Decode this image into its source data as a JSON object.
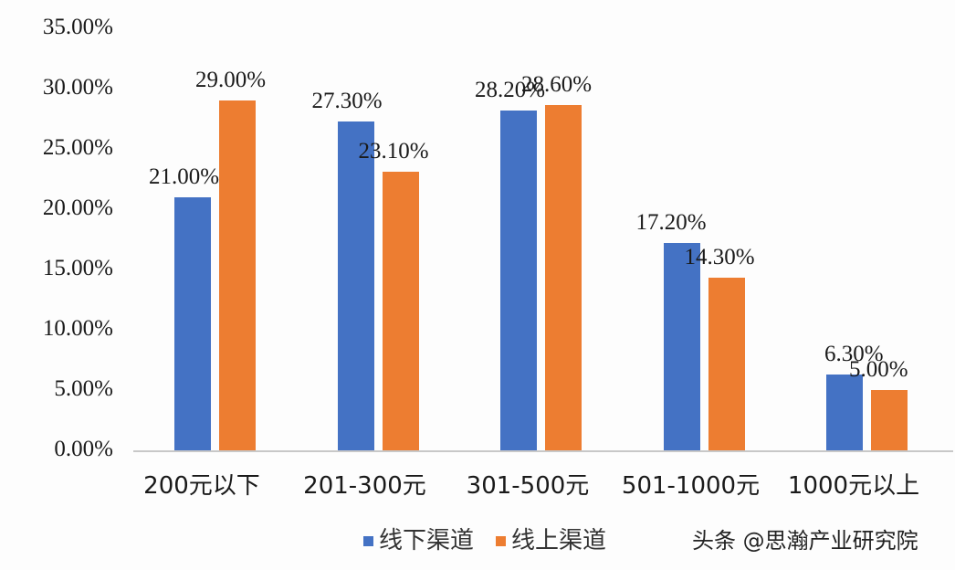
{
  "chart_data": {
    "type": "bar",
    "title": "",
    "xlabel": "",
    "ylabel": "",
    "ylim": [
      0,
      35
    ],
    "yticks": [
      "0.00%",
      "5.00%",
      "10.00%",
      "15.00%",
      "20.00%",
      "25.00%",
      "30.00%",
      "35.00%"
    ],
    "grid": false,
    "legend_position": "bottom",
    "categories": [
      "200元以下",
      "201-300元",
      "301-500元",
      "501-1000元",
      "1000元以上"
    ],
    "series": [
      {
        "name": "线下渠道",
        "color": "#4472c4",
        "values": [
          21.0,
          27.3,
          28.2,
          17.2,
          6.3
        ],
        "labels": [
          "21.00%",
          "27.30%",
          "28.20%",
          "17.20%",
          "6.30%"
        ]
      },
      {
        "name": "线上渠道",
        "color": "#ed7d31",
        "values": [
          29.0,
          23.1,
          28.6,
          14.3,
          5.0
        ],
        "labels": [
          "29.00%",
          "23.10%",
          "28.60%",
          "14.30%",
          "5.00%"
        ]
      }
    ]
  },
  "watermark": "头条 @思瀚产业研究院"
}
